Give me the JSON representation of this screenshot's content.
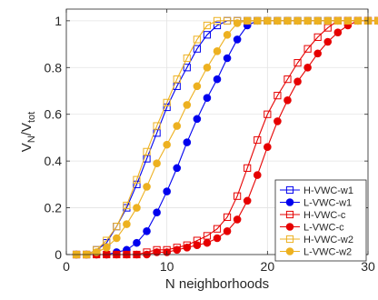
{
  "chart_data": {
    "type": "line",
    "title": "",
    "xlabel": "N neighborhoods",
    "ylabel_main": "V",
    "ylabel_sub1": "N",
    "ylabel_slash": "/V",
    "ylabel_sub2": "tot",
    "xlim": [
      0,
      30
    ],
    "ylim": [
      0,
      1.05
    ],
    "xticks": [
      0,
      10,
      20,
      30
    ],
    "yticks": [
      0,
      0.2,
      0.4,
      0.6,
      0.8,
      1
    ],
    "xtick_labels": [
      "0",
      "10",
      "20",
      "30"
    ],
    "ytick_labels": [
      "0",
      "0.2",
      "0.4",
      "0.6",
      "0.8",
      "1"
    ],
    "grid": true,
    "legend_position": "bottom-right",
    "x": [
      1,
      2,
      3,
      4,
      5,
      6,
      7,
      8,
      9,
      10,
      11,
      12,
      13,
      14,
      15,
      16,
      17,
      18,
      19,
      20,
      21,
      22,
      23,
      24,
      25,
      26,
      27,
      28,
      29,
      30,
      31
    ],
    "series": [
      {
        "name": "H-VWC-w1",
        "color": "#0000ee",
        "marker": "square-open",
        "values": [
          0.0,
          0.0,
          0.02,
          0.05,
          0.12,
          0.2,
          0.3,
          0.41,
          0.52,
          0.63,
          0.72,
          0.8,
          0.88,
          0.94,
          0.98,
          1.0,
          1.0,
          1.0,
          1.0,
          1.0,
          1.0,
          1.0,
          1.0,
          1.0,
          1.0,
          1.0,
          1.0,
          1.0,
          1.0,
          1.0,
          1.0
        ]
      },
      {
        "name": "L-VWC-w1",
        "color": "#0000ee",
        "marker": "circle-filled",
        "values": [
          0.0,
          0.0,
          0.0,
          0.0,
          0.01,
          0.02,
          0.05,
          0.1,
          0.18,
          0.27,
          0.37,
          0.48,
          0.58,
          0.67,
          0.75,
          0.84,
          0.92,
          0.98,
          1.0,
          1.0,
          1.0,
          1.0,
          1.0,
          1.0,
          1.0,
          1.0,
          1.0,
          1.0,
          1.0,
          1.0,
          1.0
        ]
      },
      {
        "name": "H-VWC-c",
        "color": "#e60000",
        "marker": "square-open",
        "values": [
          0.0,
          0.0,
          0.0,
          0.0,
          0.0,
          0.0,
          0.0,
          0.01,
          0.02,
          0.02,
          0.03,
          0.04,
          0.06,
          0.08,
          0.11,
          0.16,
          0.25,
          0.37,
          0.49,
          0.6,
          0.68,
          0.75,
          0.82,
          0.88,
          0.93,
          0.97,
          1.0,
          1.0,
          1.0,
          1.0,
          1.0
        ]
      },
      {
        "name": "L-VWC-c",
        "color": "#e60000",
        "marker": "circle-filled",
        "values": [
          0.0,
          0.0,
          0.0,
          0.0,
          0.0,
          0.0,
          0.0,
          0.0,
          0.01,
          0.01,
          0.02,
          0.03,
          0.04,
          0.05,
          0.07,
          0.1,
          0.15,
          0.23,
          0.34,
          0.46,
          0.57,
          0.66,
          0.74,
          0.8,
          0.86,
          0.91,
          0.95,
          0.98,
          1.0,
          1.0,
          1.0
        ]
      },
      {
        "name": "H-VWC-w2",
        "color": "#edb120",
        "marker": "square-open",
        "values": [
          0.0,
          0.0,
          0.02,
          0.06,
          0.12,
          0.21,
          0.32,
          0.44,
          0.55,
          0.65,
          0.75,
          0.84,
          0.92,
          0.98,
          1.0,
          1.0,
          1.0,
          1.0,
          1.0,
          1.0,
          1.0,
          1.0,
          1.0,
          1.0,
          1.0,
          1.0,
          1.0,
          1.0,
          1.0,
          1.0,
          1.0
        ]
      },
      {
        "name": "L-VWC-w2",
        "color": "#edb120",
        "marker": "circle-filled",
        "values": [
          0.0,
          0.0,
          0.01,
          0.03,
          0.07,
          0.13,
          0.2,
          0.29,
          0.39,
          0.47,
          0.55,
          0.64,
          0.72,
          0.8,
          0.87,
          0.94,
          0.99,
          1.0,
          1.0,
          1.0,
          1.0,
          1.0,
          1.0,
          1.0,
          1.0,
          1.0,
          1.0,
          1.0,
          1.0,
          1.0,
          1.0
        ]
      }
    ]
  }
}
